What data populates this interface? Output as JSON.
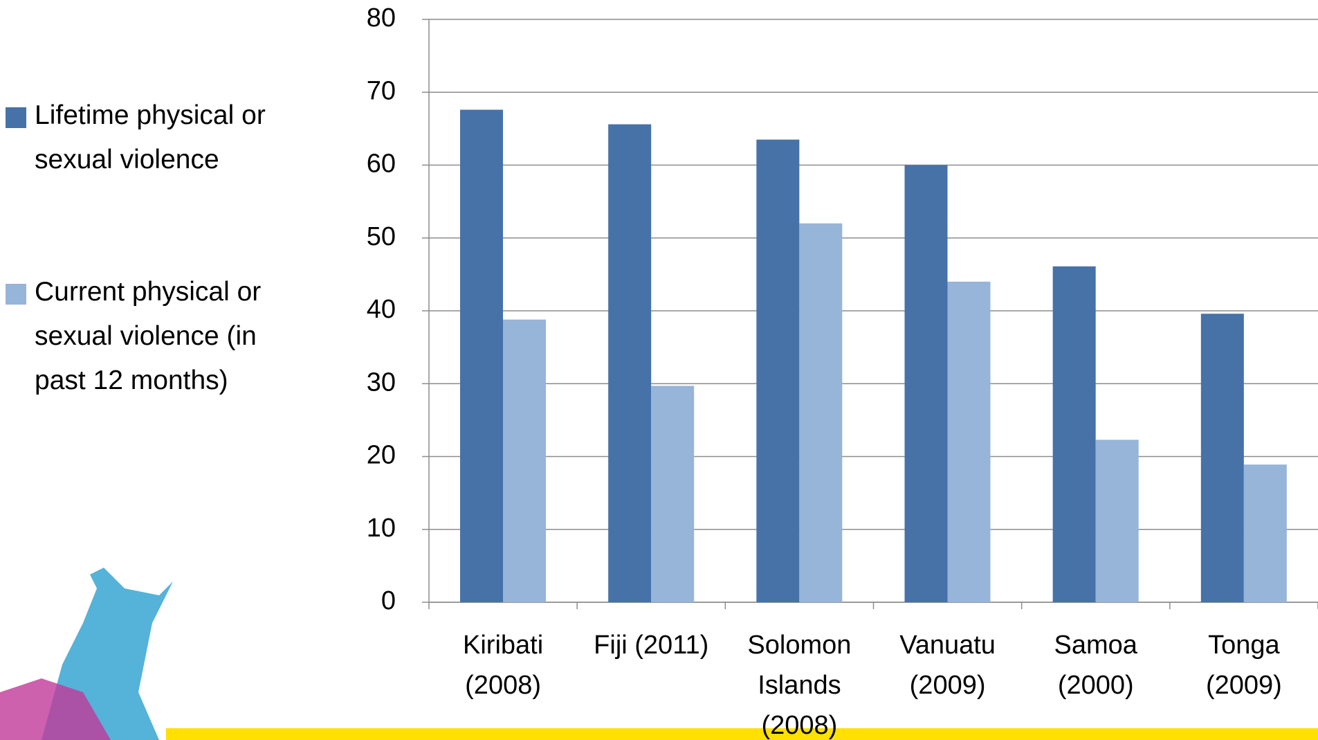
{
  "chart_data": {
    "type": "bar",
    "categories": [
      "Kiribati (2008)",
      "Fiji (2011)",
      "Solomon Islands (2008)",
      "Vanuatu (2009)",
      "Samoa (2000)",
      "Tonga (2009)"
    ],
    "series": [
      {
        "name": "Lifetime physical or sexual violence",
        "color": "#4672a8",
        "values": [
          67.6,
          65.6,
          63.5,
          60,
          46.1,
          39.6
        ]
      },
      {
        "name": "Current physical or sexual violence (in past 12 months)",
        "color": "#97b4d9",
        "values": [
          38.8,
          29.7,
          52,
          44,
          22.3,
          18.9
        ]
      }
    ],
    "ylim": [
      0,
      80
    ],
    "yticks": [
      0,
      10,
      20,
      30,
      40,
      50,
      60,
      70,
      80
    ],
    "grid": true,
    "legend": "left"
  }
}
